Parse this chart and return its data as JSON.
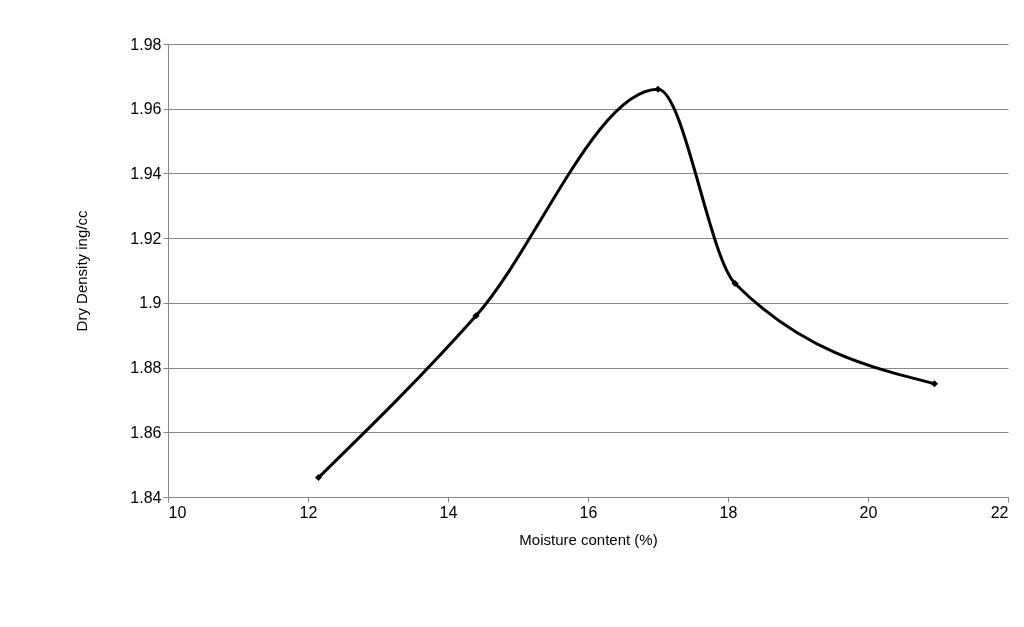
{
  "chart_data": {
    "type": "line",
    "xlabel": "Moisture content (%)",
    "ylabel": "Dry Density ing/cc",
    "x": [
      12.15,
      14.4,
      17,
      18.1,
      20.95
    ],
    "series": [
      {
        "color": "#000000",
        "values": [
          1.846,
          1.896,
          1.966,
          1.906,
          1.875
        ]
      }
    ],
    "xlim": [
      10,
      22
    ],
    "xticks": [
      10,
      12,
      14,
      16,
      18,
      20,
      22
    ],
    "ylim": [
      1.84,
      1.98
    ],
    "yticks": [
      {
        "value": 1.84,
        "label": "1.84"
      },
      {
        "value": 1.86,
        "label": "1.86"
      },
      {
        "value": 1.88,
        "label": "1.88"
      },
      {
        "value": 1.9,
        "label": "1.9"
      },
      {
        "value": 1.92,
        "label": "1.92"
      },
      {
        "value": 1.94,
        "label": "1.94"
      },
      {
        "value": 1.96,
        "label": "1.96"
      },
      {
        "value": 1.98,
        "label": "1.98"
      }
    ],
    "grid": "y",
    "marker": "diamond",
    "line_style": "solid"
  }
}
